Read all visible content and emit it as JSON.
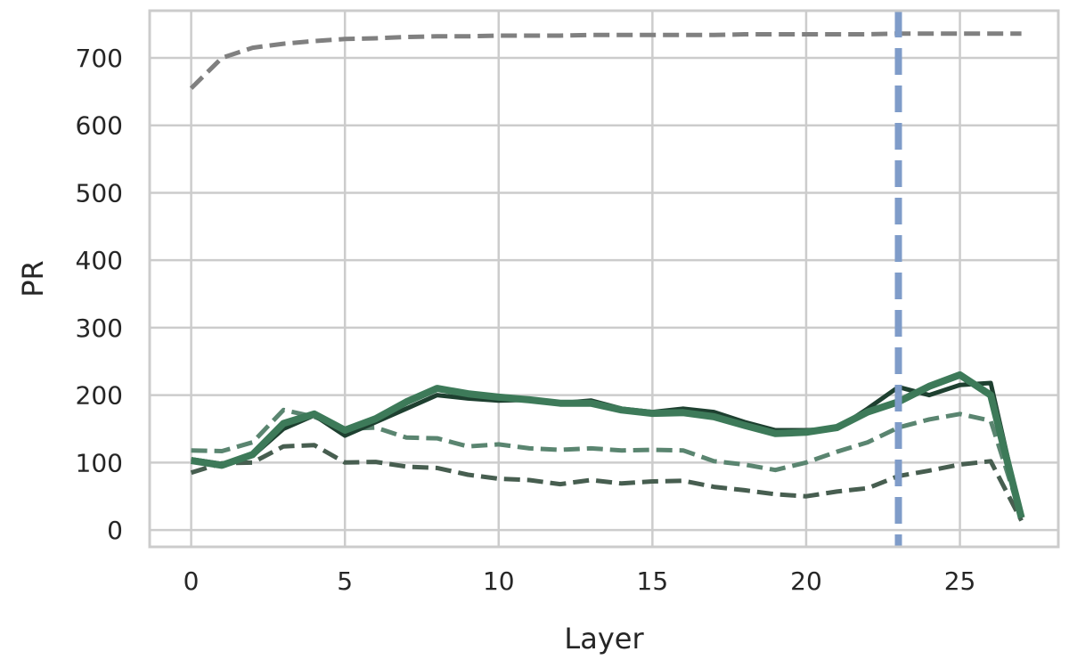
{
  "chart_data": {
    "type": "line",
    "title": "",
    "xlabel": "Layer",
    "ylabel": "PR",
    "xlim": [
      -1.35,
      28.2
    ],
    "ylim": [
      -25,
      770
    ],
    "xticks": [
      0,
      5,
      10,
      15,
      20,
      25
    ],
    "yticks": [
      0,
      100,
      200,
      300,
      400,
      500,
      600,
      700
    ],
    "grid": true,
    "legend": "none",
    "x": [
      0,
      1,
      2,
      3,
      4,
      5,
      6,
      7,
      8,
      9,
      10,
      11,
      12,
      13,
      14,
      15,
      16,
      17,
      18,
      19,
      20,
      21,
      22,
      23,
      24,
      25,
      26,
      27
    ],
    "series": [
      {
        "color": "#808080",
        "style": "dashed",
        "width": 5,
        "values": [
          655,
          700,
          715,
          721,
          725,
          728,
          729,
          731,
          732,
          732,
          733,
          733,
          733,
          734,
          734,
          734,
          734,
          734,
          735,
          735,
          735,
          735,
          735,
          736,
          736,
          736,
          736,
          736
        ]
      },
      {
        "color": "#5a8570",
        "style": "dashed",
        "width": 5,
        "values": [
          118,
          117,
          130,
          178,
          168,
          150,
          152,
          137,
          136,
          124,
          127,
          121,
          119,
          121,
          118,
          119,
          118,
          102,
          97,
          89,
          100,
          116,
          130,
          152,
          164,
          172,
          162,
          20
        ]
      },
      {
        "color": "#475e50",
        "style": "dashed",
        "width": 5,
        "values": [
          85,
          99,
          100,
          124,
          126,
          100,
          101,
          94,
          92,
          82,
          76,
          74,
          68,
          74,
          69,
          72,
          73,
          64,
          59,
          53,
          50,
          57,
          62,
          80,
          88,
          97,
          102,
          14
        ]
      },
      {
        "color": "#1e4030",
        "style": "solid",
        "width": 5,
        "values": [
          105,
          98,
          110,
          150,
          170,
          140,
          160,
          180,
          200,
          195,
          192,
          193,
          188,
          192,
          180,
          175,
          180,
          175,
          160,
          148,
          148,
          150,
          180,
          212,
          200,
          215,
          218,
          18
        ]
      },
      {
        "color": "#3d7a59",
        "style": "solid",
        "width": 8,
        "values": [
          103,
          96,
          112,
          158,
          172,
          148,
          165,
          190,
          210,
          202,
          197,
          193,
          188,
          188,
          178,
          173,
          174,
          168,
          155,
          143,
          145,
          152,
          175,
          190,
          213,
          230,
          200,
          18
        ]
      }
    ],
    "vline": {
      "x": 23,
      "color": "#7f9cc9",
      "style": "dashed",
      "width": 8
    }
  }
}
